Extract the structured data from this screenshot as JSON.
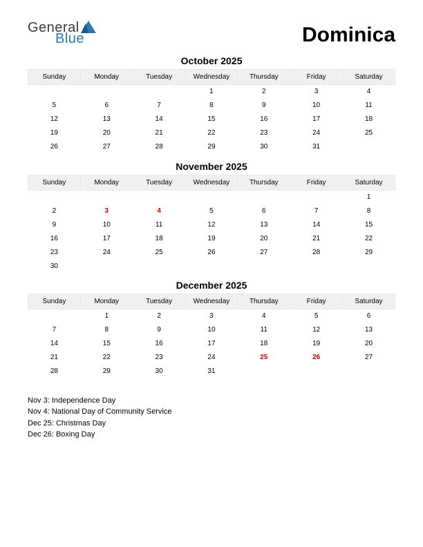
{
  "logo": {
    "text1": "General",
    "text2": "Blue",
    "shape_color": "#2a7ab0"
  },
  "country": "Dominica",
  "day_headers": [
    "Sunday",
    "Monday",
    "Tuesday",
    "Wednesday",
    "Thursday",
    "Friday",
    "Saturday"
  ],
  "months": [
    {
      "title": "October 2025",
      "weeks": [
        [
          "",
          "",
          "",
          "1",
          "2",
          "3",
          "4"
        ],
        [
          "5",
          "6",
          "7",
          "8",
          "9",
          "10",
          "11"
        ],
        [
          "12",
          "13",
          "14",
          "15",
          "16",
          "17",
          "18"
        ],
        [
          "19",
          "20",
          "21",
          "22",
          "23",
          "24",
          "25"
        ],
        [
          "26",
          "27",
          "28",
          "29",
          "30",
          "31",
          ""
        ]
      ],
      "holidays": []
    },
    {
      "title": "November 2025",
      "weeks": [
        [
          "",
          "",
          "",
          "",
          "",
          "",
          "1"
        ],
        [
          "2",
          "3",
          "4",
          "5",
          "6",
          "7",
          "8"
        ],
        [
          "9",
          "10",
          "11",
          "12",
          "13",
          "14",
          "15"
        ],
        [
          "16",
          "17",
          "18",
          "19",
          "20",
          "21",
          "22"
        ],
        [
          "23",
          "24",
          "25",
          "26",
          "27",
          "28",
          "29"
        ],
        [
          "30",
          "",
          "",
          "",
          "",
          "",
          ""
        ]
      ],
      "holidays": [
        "3",
        "4"
      ]
    },
    {
      "title": "December 2025",
      "weeks": [
        [
          "",
          "1",
          "2",
          "3",
          "4",
          "5",
          "6"
        ],
        [
          "7",
          "8",
          "9",
          "10",
          "11",
          "12",
          "13"
        ],
        [
          "14",
          "15",
          "16",
          "17",
          "18",
          "19",
          "20"
        ],
        [
          "21",
          "22",
          "23",
          "24",
          "25",
          "26",
          "27"
        ],
        [
          "28",
          "29",
          "30",
          "31",
          "",
          "",
          ""
        ]
      ],
      "holidays": [
        "25",
        "26"
      ]
    }
  ],
  "holiday_list": [
    "Nov 3: Independence Day",
    "Nov 4: National Day of Community Service",
    "Dec 25: Christmas Day",
    "Dec 26: Boxing Day"
  ]
}
